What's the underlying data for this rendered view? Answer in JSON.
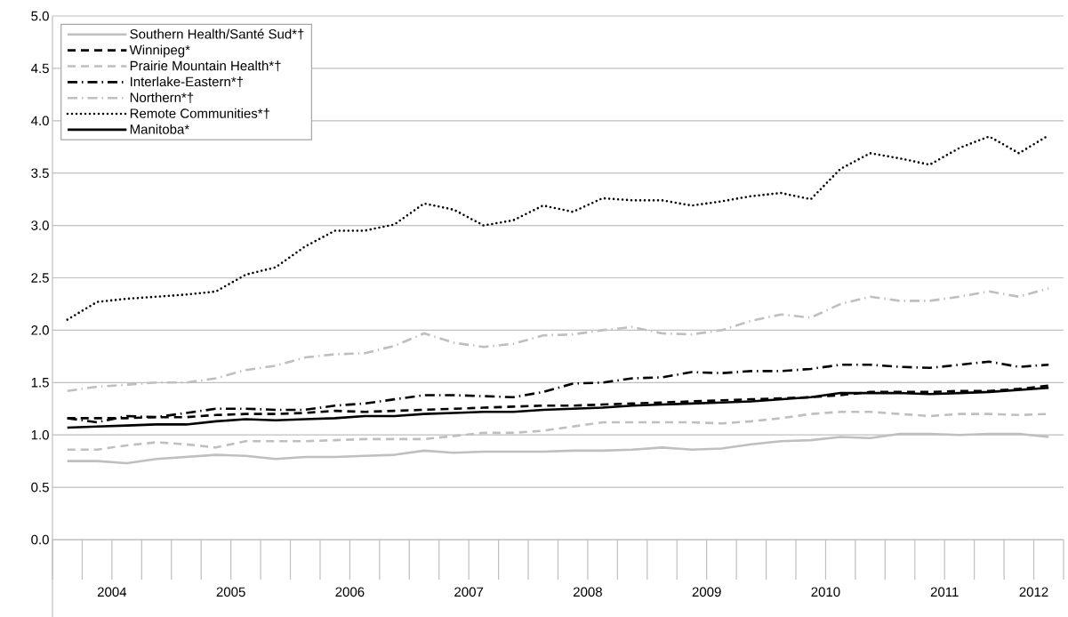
{
  "chart_data": {
    "type": "line",
    "x": [
      2004.125,
      2004.375,
      2004.625,
      2004.875,
      2005.125,
      2005.375,
      2005.625,
      2005.875,
      2006.125,
      2006.375,
      2006.625,
      2006.875,
      2007.125,
      2007.375,
      2007.625,
      2007.875,
      2008.125,
      2008.375,
      2008.625,
      2008.875,
      2009.125,
      2009.375,
      2009.625,
      2009.875,
      2010.125,
      2010.375,
      2010.625,
      2010.875,
      2011.125,
      2011.375,
      2011.625,
      2011.875,
      2012.125,
      2012.375
    ],
    "xlim": [
      2004,
      2012.5
    ],
    "xticks": [
      {
        "value": 2004.5,
        "label": "2004"
      },
      {
        "value": 2005.5,
        "label": "2005"
      },
      {
        "value": 2006.5,
        "label": "2006"
      },
      {
        "value": 2007.5,
        "label": "2007"
      },
      {
        "value": 2008.5,
        "label": "2008"
      },
      {
        "value": 2009.5,
        "label": "2009"
      },
      {
        "value": 2010.5,
        "label": "2010"
      },
      {
        "value": 2011.5,
        "label": "2011"
      },
      {
        "value": 2012.25,
        "label": "2012"
      }
    ],
    "ylim": [
      0,
      5
    ],
    "yticks": [
      {
        "value": 0,
        "label": "0.0"
      },
      {
        "value": 0.5,
        "label": "0.5"
      },
      {
        "value": 1,
        "label": "1.0"
      },
      {
        "value": 1.5,
        "label": "1.5"
      },
      {
        "value": 2,
        "label": "2.0"
      },
      {
        "value": 2.5,
        "label": "2.5"
      },
      {
        "value": 3,
        "label": "3.0"
      },
      {
        "value": 3.5,
        "label": "3.5"
      },
      {
        "value": 4,
        "label": "4.0"
      },
      {
        "value": 4.5,
        "label": "4.5"
      },
      {
        "value": 5,
        "label": "5.0"
      }
    ],
    "grid": "y",
    "legend": "top left",
    "series": [
      {
        "name": "Southern Health/Santé Sud*†",
        "color": "#bfbfbf",
        "line_style": "solid",
        "values": [
          0.75,
          0.75,
          0.73,
          0.77,
          0.79,
          0.81,
          0.8,
          0.77,
          0.79,
          0.79,
          0.8,
          0.81,
          0.85,
          0.83,
          0.84,
          0.84,
          0.84,
          0.85,
          0.85,
          0.86,
          0.88,
          0.86,
          0.87,
          0.91,
          0.94,
          0.95,
          0.98,
          0.97,
          1.01,
          1.01,
          1.0,
          1.01,
          1.01,
          0.98
        ]
      },
      {
        "name": "Winnipeg*",
        "color": "#000000",
        "line_style": "dashed",
        "values": [
          1.16,
          1.16,
          1.16,
          1.17,
          1.17,
          1.19,
          1.2,
          1.2,
          1.21,
          1.23,
          1.22,
          1.23,
          1.24,
          1.25,
          1.26,
          1.27,
          1.28,
          1.28,
          1.29,
          1.3,
          1.31,
          1.32,
          1.33,
          1.34,
          1.35,
          1.36,
          1.38,
          1.41,
          1.41,
          1.41,
          1.42,
          1.42,
          1.44,
          1.47
        ]
      },
      {
        "name": "Prairie Mountain Health*†",
        "color": "#bfbfbf",
        "line_style": "dashed",
        "values": [
          0.86,
          0.86,
          0.9,
          0.93,
          0.91,
          0.88,
          0.94,
          0.94,
          0.94,
          0.95,
          0.96,
          0.96,
          0.96,
          0.99,
          1.02,
          1.02,
          1.04,
          1.08,
          1.12,
          1.12,
          1.12,
          1.12,
          1.11,
          1.13,
          1.16,
          1.2,
          1.22,
          1.22,
          1.2,
          1.18,
          1.2,
          1.2,
          1.19,
          1.2
        ]
      },
      {
        "name": "Interlake-Eastern*†",
        "color": "#000000",
        "line_style": "dashdot",
        "values": [
          1.16,
          1.12,
          1.18,
          1.17,
          1.21,
          1.25,
          1.25,
          1.24,
          1.24,
          1.28,
          1.3,
          1.34,
          1.38,
          1.38,
          1.37,
          1.36,
          1.41,
          1.49,
          1.5,
          1.54,
          1.55,
          1.6,
          1.59,
          1.61,
          1.61,
          1.63,
          1.67,
          1.67,
          1.65,
          1.64,
          1.67,
          1.7,
          1.65,
          1.67
        ]
      },
      {
        "name": "Northern*†",
        "color": "#bfbfbf",
        "line_style": "dashdot",
        "values": [
          1.42,
          1.46,
          1.48,
          1.5,
          1.5,
          1.54,
          1.62,
          1.66,
          1.74,
          1.77,
          1.78,
          1.85,
          1.97,
          1.88,
          1.84,
          1.87,
          1.95,
          1.96,
          2.0,
          2.03,
          1.97,
          1.96,
          2.0,
          2.09,
          2.15,
          2.12,
          2.25,
          2.32,
          2.28,
          2.28,
          2.32,
          2.37,
          2.32,
          2.4
        ]
      },
      {
        "name": "Remote Communities*†",
        "color": "#000000",
        "line_style": "dotted",
        "values": [
          2.1,
          2.27,
          2.3,
          2.32,
          2.34,
          2.37,
          2.53,
          2.6,
          2.8,
          2.95,
          2.95,
          3.01,
          3.21,
          3.15,
          3.0,
          3.05,
          3.19,
          3.13,
          3.26,
          3.24,
          3.24,
          3.19,
          3.23,
          3.28,
          3.31,
          3.25,
          3.54,
          3.69,
          3.64,
          3.58,
          3.74,
          3.85,
          3.69,
          3.86
        ]
      },
      {
        "name": "Manitoba*",
        "color": "#000000",
        "line_style": "solid",
        "values": [
          1.07,
          1.08,
          1.09,
          1.1,
          1.1,
          1.13,
          1.15,
          1.14,
          1.15,
          1.16,
          1.18,
          1.18,
          1.2,
          1.21,
          1.22,
          1.22,
          1.24,
          1.25,
          1.26,
          1.28,
          1.29,
          1.3,
          1.31,
          1.32,
          1.34,
          1.36,
          1.4,
          1.4,
          1.4,
          1.39,
          1.4,
          1.41,
          1.43,
          1.45
        ]
      }
    ]
  }
}
